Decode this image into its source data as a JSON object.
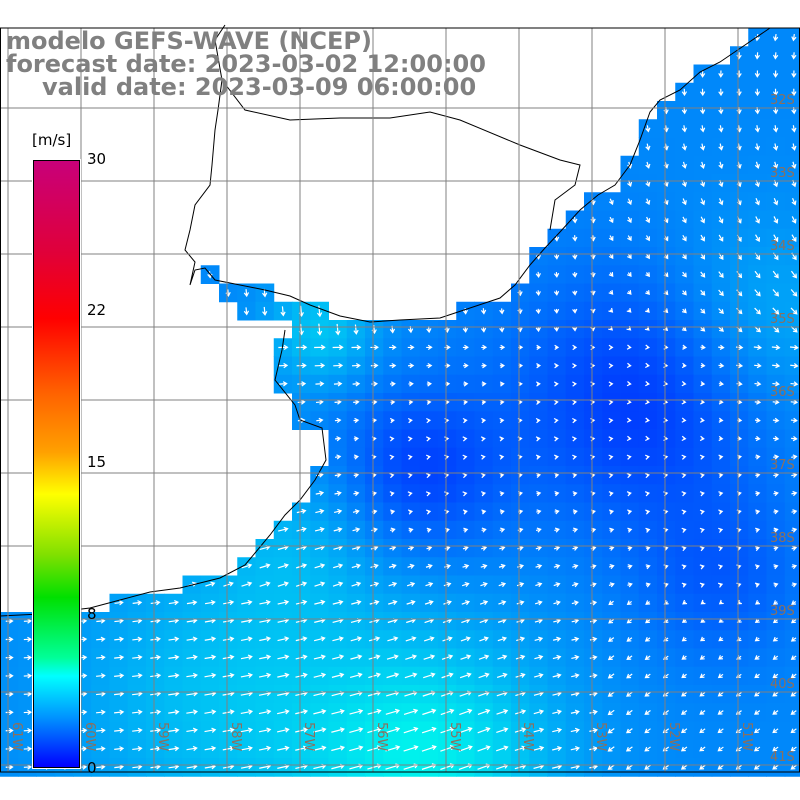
{
  "title": {
    "model": "modelo GEFS-WAVE (NCEP)",
    "forecast": "forecast date: 2023-03-02 12:00:00",
    "valid": "valid date: 2023-03-09 06:00:00"
  },
  "colorbar": {
    "unit": "[m/s]",
    "ticks": [
      "30",
      "22",
      "15",
      "8",
      "0"
    ],
    "min": 0,
    "max": 30
  },
  "lat_labels": [
    "32S",
    "33S",
    "34S",
    "35S",
    "36S",
    "37S",
    "38S",
    "39S",
    "40S",
    "41S"
  ],
  "lon_labels": [
    "61W",
    "60W",
    "59W",
    "58W",
    "57W",
    "56W",
    "55W",
    "54W",
    "53W",
    "52W",
    "51W"
  ],
  "colors": {
    "land": "#ffffff",
    "grid": "#808080",
    "coast": "#000000",
    "arrow": "#ffffff"
  }
}
